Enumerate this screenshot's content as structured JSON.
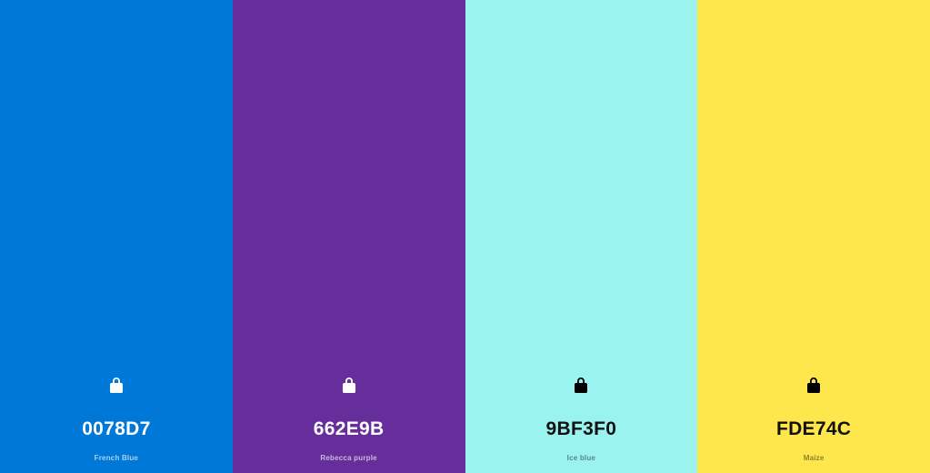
{
  "swatches": [
    {
      "hex": "0078D7",
      "name": "French Blue",
      "color": "#0078D7",
      "lock_icon": "lock-icon"
    },
    {
      "hex": "662E9B",
      "name": "Rebecca purple",
      "color": "#662E9B",
      "lock_icon": "lock-icon"
    },
    {
      "hex": "9BF3F0",
      "name": "Ice blue",
      "color": "#9BF3F0",
      "lock_icon": "lock-icon"
    },
    {
      "hex": "FDE74C",
      "name": "Maize",
      "color": "#FDE74C",
      "lock_icon": "lock-icon"
    }
  ]
}
